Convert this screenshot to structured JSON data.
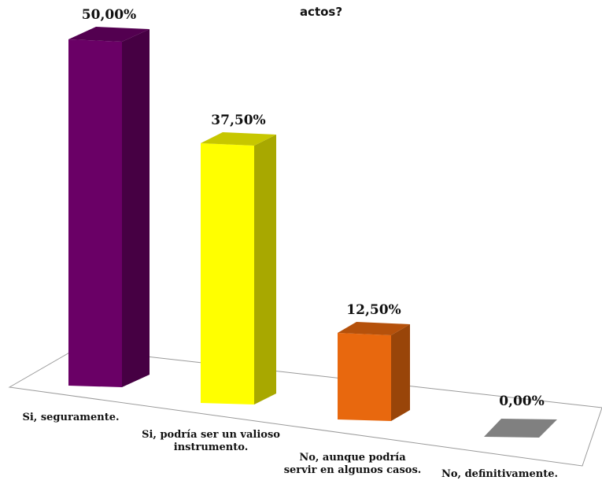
{
  "chart_data": {
    "type": "bar",
    "title": "actos?",
    "categories": [
      [
        "Si, seguramente."
      ],
      [
        "Si, podría ser un valioso",
        "instrumento."
      ],
      [
        "No, aunque podría",
        "servir en algunos casos."
      ],
      [
        "No, definitivamente."
      ]
    ],
    "values": [
      50.0,
      37.5,
      12.5,
      0.0
    ],
    "value_labels": [
      "50,00%",
      "37,50%",
      "12,50%",
      "0,00%"
    ],
    "colors": [
      "#6a0066",
      "#ffff00",
      "#e8680e",
      "#808080"
    ],
    "ylim": [
      0,
      50
    ],
    "grid": false,
    "legend": "none",
    "style": "3d-column"
  }
}
